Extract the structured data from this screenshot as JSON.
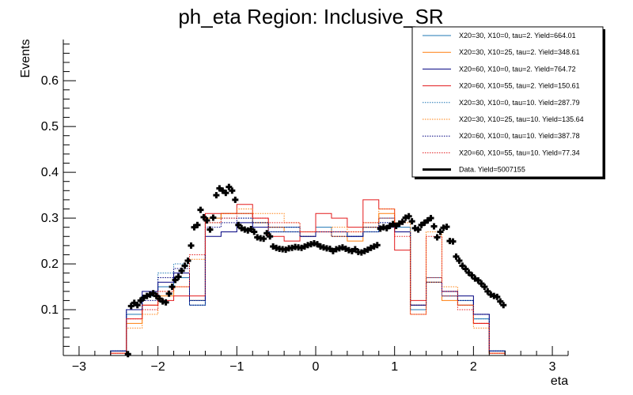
{
  "chart_data": {
    "type": "histogram",
    "title": "ph_eta Region: Inclusive_SR",
    "xlabel": "eta",
    "ylabel": "Events",
    "xlim": [
      -3.2,
      3.2
    ],
    "ylim": [
      0,
      0.69
    ],
    "x_ticks": [
      -3,
      -2,
      -1,
      0,
      1,
      2,
      3
    ],
    "x_tick_labels": [
      "−3",
      "−2",
      "−1",
      "0",
      "1",
      "2",
      "3"
    ],
    "y_ticks": [
      0.1,
      0.2,
      0.3,
      0.4,
      0.5,
      0.6
    ],
    "y_tick_labels": [
      "0.1",
      "0.2",
      "0.3",
      "0.4",
      "0.5",
      "0.6"
    ],
    "legend_position": "top-right",
    "bin_edges": [
      -3.0,
      -2.8,
      -2.6,
      -2.4,
      -2.2,
      -2.0,
      -1.8,
      -1.6,
      -1.4,
      -1.2,
      -1.0,
      -0.8,
      -0.6,
      -0.4,
      -0.2,
      0.0,
      0.2,
      0.4,
      0.6,
      0.8,
      1.0,
      1.2,
      1.4,
      1.6,
      1.8,
      2.0,
      2.2,
      2.4,
      2.6,
      2.8,
      3.0
    ],
    "series": [
      {
        "name": "X20=30, X10=0, tau=2. Yield=664.01",
        "color": "#1f77b4",
        "style": "solid",
        "values": [
          0,
          0,
          0.01,
          0.09,
          0.13,
          0.15,
          0.17,
          0.11,
          0.3,
          0.31,
          0.31,
          0.29,
          0.28,
          0.28,
          0.27,
          0.28,
          0.27,
          0.26,
          0.28,
          0.3,
          0.28,
          0.1,
          0.16,
          0.13,
          0.12,
          0.08,
          0.01,
          0,
          0,
          0
        ]
      },
      {
        "name": "X20=30, X10=25, tau=2. Yield=348.61",
        "color": "#ff7f0e",
        "style": "solid",
        "values": [
          0,
          0,
          0.005,
          0.07,
          0.11,
          0.13,
          0.15,
          0.12,
          0.3,
          0.31,
          0.31,
          0.29,
          0.28,
          0.27,
          0.26,
          0.27,
          0.26,
          0.25,
          0.28,
          0.31,
          0.27,
          0.11,
          0.16,
          0.12,
          0.11,
          0.07,
          0.005,
          0,
          0,
          0
        ]
      },
      {
        "name": "X20=60, X10=0, tau=2. Yield=764.72",
        "color": "#000080",
        "style": "solid",
        "values": [
          0,
          0,
          0.01,
          0.1,
          0.14,
          0.16,
          0.18,
          0.12,
          0.26,
          0.27,
          0.29,
          0.28,
          0.27,
          0.27,
          0.26,
          0.27,
          0.27,
          0.26,
          0.27,
          0.28,
          0.27,
          0.11,
          0.17,
          0.14,
          0.13,
          0.09,
          0.01,
          0,
          0,
          0
        ]
      },
      {
        "name": "X20=60, X10=55, tau=2. Yield=150.61",
        "color": "#e31a1c",
        "style": "solid",
        "values": [
          0,
          0,
          0.005,
          0.08,
          0.11,
          0.12,
          0.13,
          0.13,
          0.31,
          0.31,
          0.33,
          0.3,
          0.26,
          0.25,
          0.27,
          0.31,
          0.3,
          0.28,
          0.34,
          0.32,
          0.23,
          0.12,
          0.17,
          0.13,
          0.11,
          0.07,
          0.005,
          0,
          0,
          0
        ]
      },
      {
        "name": "X20=30, X10=0, tau=10. Yield=287.79",
        "color": "#1f77b4",
        "style": "dotted",
        "values": [
          0,
          0,
          0.01,
          0.1,
          0.13,
          0.18,
          0.2,
          0.12,
          0.29,
          0.3,
          0.3,
          0.29,
          0.27,
          0.27,
          0.26,
          0.27,
          0.27,
          0.26,
          0.27,
          0.29,
          0.27,
          0.1,
          0.17,
          0.13,
          0.11,
          0.08,
          0.01,
          0,
          0,
          0
        ]
      },
      {
        "name": "X20=30, X10=25, tau=10. Yield=135.64",
        "color": "#ff7f0e",
        "style": "dotted",
        "values": [
          0,
          0,
          0.005,
          0.06,
          0.09,
          0.14,
          0.15,
          0.21,
          0.29,
          0.31,
          0.32,
          0.31,
          0.31,
          0.29,
          0.27,
          0.27,
          0.28,
          0.27,
          0.29,
          0.32,
          0.29,
          0.09,
          0.27,
          0.15,
          0.11,
          0.06,
          0.005,
          0,
          0,
          0
        ]
      },
      {
        "name": "X20=60, X10=0, tau=10. Yield=387.78",
        "color": "#000080",
        "style": "dotted",
        "values": [
          0,
          0,
          0.01,
          0.1,
          0.12,
          0.17,
          0.19,
          0.11,
          0.28,
          0.29,
          0.3,
          0.29,
          0.28,
          0.28,
          0.26,
          0.27,
          0.26,
          0.26,
          0.28,
          0.29,
          0.27,
          0.11,
          0.16,
          0.14,
          0.12,
          0.09,
          0.01,
          0,
          0,
          0
        ]
      },
      {
        "name": "X20=60, X10=55, tau=10. Yield=77.34",
        "color": "#e31a1c",
        "style": "dotted",
        "values": [
          0,
          0,
          0.005,
          0.08,
          0.1,
          0.14,
          0.15,
          0.22,
          0.29,
          0.3,
          0.31,
          0.3,
          0.29,
          0.29,
          0.27,
          0.27,
          0.27,
          0.27,
          0.29,
          0.3,
          0.26,
          0.09,
          0.26,
          0.14,
          0.1,
          0.07,
          0.005,
          0,
          0,
          0
        ]
      }
    ],
    "data_points": {
      "name": "Data. Yield=5007155",
      "color": "#000000",
      "x": [
        -2.38,
        -2.34,
        -2.3,
        -2.26,
        -2.22,
        -2.18,
        -2.14,
        -2.1,
        -2.06,
        -2.02,
        -1.98,
        -1.94,
        -1.9,
        -1.86,
        -1.82,
        -1.78,
        -1.74,
        -1.7,
        -1.66,
        -1.62,
        -1.58,
        -1.54,
        -1.5,
        -1.46,
        -1.42,
        -1.38,
        -1.34,
        -1.3,
        -1.26,
        -1.22,
        -1.18,
        -1.14,
        -1.1,
        -1.06,
        -1.02,
        -0.98,
        -0.94,
        -0.9,
        -0.86,
        -0.82,
        -0.78,
        -0.74,
        -0.7,
        -0.66,
        -0.62,
        -0.58,
        -0.54,
        -0.5,
        -0.46,
        -0.42,
        -0.38,
        -0.34,
        -0.3,
        -0.26,
        -0.22,
        -0.18,
        -0.14,
        -0.1,
        -0.06,
        -0.02,
        0.02,
        0.06,
        0.1,
        0.14,
        0.18,
        0.22,
        0.26,
        0.3,
        0.34,
        0.38,
        0.42,
        0.46,
        0.5,
        0.54,
        0.58,
        0.62,
        0.66,
        0.7,
        0.74,
        0.78,
        0.82,
        0.86,
        0.9,
        0.94,
        0.98,
        1.02,
        1.06,
        1.1,
        1.14,
        1.18,
        1.22,
        1.26,
        1.3,
        1.34,
        1.38,
        1.42,
        1.46,
        1.5,
        1.54,
        1.58,
        1.62,
        1.66,
        1.7,
        1.74,
        1.78,
        1.82,
        1.86,
        1.9,
        1.94,
        1.98,
        2.02,
        2.06,
        2.1,
        2.14,
        2.18,
        2.22,
        2.26,
        2.3,
        2.34,
        2.38
      ],
      "y": [
        0.003,
        0.108,
        0.115,
        0.11,
        0.12,
        0.126,
        0.13,
        0.133,
        0.136,
        0.13,
        0.124,
        0.118,
        0.116,
        0.135,
        0.15,
        0.165,
        0.172,
        0.185,
        0.196,
        0.207,
        0.24,
        0.28,
        0.285,
        0.318,
        0.302,
        0.295,
        0.275,
        0.301,
        0.35,
        0.365,
        0.36,
        0.355,
        0.368,
        0.36,
        0.34,
        0.285,
        0.278,
        0.275,
        0.273,
        0.276,
        0.27,
        0.258,
        0.256,
        0.255,
        0.267,
        0.26,
        0.238,
        0.235,
        0.233,
        0.232,
        0.231,
        0.234,
        0.235,
        0.237,
        0.236,
        0.235,
        0.238,
        0.241,
        0.243,
        0.245,
        0.243,
        0.238,
        0.236,
        0.234,
        0.233,
        0.228,
        0.232,
        0.234,
        0.236,
        0.233,
        0.23,
        0.228,
        0.232,
        0.226,
        0.225,
        0.228,
        0.231,
        0.235,
        0.238,
        0.241,
        0.277,
        0.28,
        0.278,
        0.283,
        0.287,
        0.283,
        0.288,
        0.292,
        0.301,
        0.304,
        0.293,
        0.278,
        0.275,
        0.285,
        0.29,
        0.295,
        0.3,
        0.282,
        0.258,
        0.27,
        0.279,
        0.281,
        0.25,
        0.249,
        0.216,
        0.207,
        0.196,
        0.189,
        0.181,
        0.175,
        0.168,
        0.164,
        0.157,
        0.15,
        0.14,
        0.133,
        0.13,
        0.128,
        0.118,
        0.11
      ]
    }
  }
}
